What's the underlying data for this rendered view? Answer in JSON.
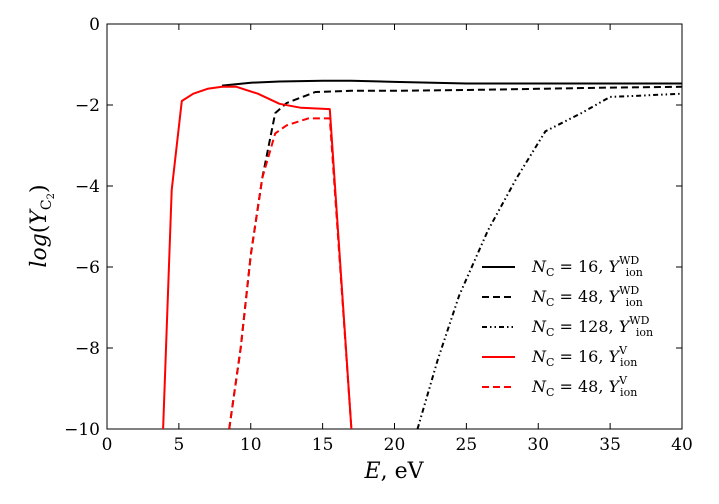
{
  "chart_data": {
    "type": "line",
    "title": "",
    "xlabel_var": "E",
    "xlabel_unit": ", eV",
    "ylabel_func": "log",
    "ylabel_var": "Y",
    "ylabel_sub": "C",
    "ylabel_subsub": "2",
    "xlim": [
      0,
      40
    ],
    "ylim": [
      -10,
      0
    ],
    "xticks": [
      0,
      5,
      10,
      15,
      20,
      25,
      30,
      35,
      40
    ],
    "yticks": [
      0,
      -2,
      -4,
      -6,
      -8,
      -10
    ],
    "grid": false,
    "legend_position": "lower-right",
    "series": [
      {
        "name_n": "N_C = 16,",
        "name_y_sup": "WD",
        "legend_text": "N_C = 16, Y_ion^WD",
        "nc": "16",
        "sup": "WD",
        "color": "#000000",
        "dash": "solid",
        "x": [
          8,
          10,
          12,
          15,
          17,
          20,
          25,
          30,
          35,
          40
        ],
        "y": [
          -1.52,
          -1.45,
          -1.42,
          -1.4,
          -1.4,
          -1.43,
          -1.47,
          -1.47,
          -1.47,
          -1.47
        ]
      },
      {
        "name_n": "N_C = 48,",
        "name_y_sup": "WD",
        "legend_text": "N_C = 48, Y_ion^WD",
        "nc": "48",
        "sup": "WD",
        "color": "#000000",
        "dash": "dashed",
        "x": [
          8.5,
          9.3,
          10,
          10.8,
          11.7,
          12.5,
          14.5,
          17,
          20,
          25,
          30,
          35,
          40
        ],
        "y": [
          -10,
          -8.0,
          -5.7,
          -3.8,
          -2.2,
          -1.95,
          -1.68,
          -1.65,
          -1.65,
          -1.63,
          -1.6,
          -1.57,
          -1.55
        ]
      },
      {
        "name_n": "N_C = 128,",
        "name_y_sup": "WD",
        "legend_text": "N_C = 128, Y_ion^WD",
        "nc": "128",
        "sup": "WD",
        "color": "#000000",
        "dash": "dashdotdot",
        "x": [
          21.6,
          23,
          24.5,
          26.5,
          28.5,
          30.5,
          33,
          35,
          37,
          40
        ],
        "y": [
          -10,
          -8.3,
          -6.7,
          -5.1,
          -3.8,
          -2.65,
          -2.2,
          -1.8,
          -1.77,
          -1.72
        ]
      },
      {
        "name_n": "N_C = 16,",
        "name_y_sup": "V",
        "legend_text": "N_C = 16, Y_ion^V",
        "nc": "16",
        "sup": "V",
        "color": "#ff0000",
        "dash": "solid",
        "x": [
          3.9,
          4.5,
          5.2,
          6,
          7,
          8,
          9,
          10.5,
          12,
          13.5,
          15.5,
          17
        ],
        "y": [
          -10,
          -4.1,
          -1.9,
          -1.72,
          -1.6,
          -1.55,
          -1.55,
          -1.72,
          -1.97,
          -2.07,
          -2.1,
          -10
        ]
      },
      {
        "name_n": "N_C = 48,",
        "name_y_sup": "V",
        "legend_text": "N_C = 48, Y_ion^V",
        "nc": "48",
        "sup": "V",
        "color": "#ff0000",
        "dash": "dashed",
        "x": [
          8.5,
          9.3,
          10,
          10.8,
          11.7,
          12.5,
          14,
          15.5,
          17
        ],
        "y": [
          -10,
          -8.0,
          -5.7,
          -3.8,
          -2.7,
          -2.5,
          -2.33,
          -2.33,
          -10
        ]
      }
    ]
  }
}
